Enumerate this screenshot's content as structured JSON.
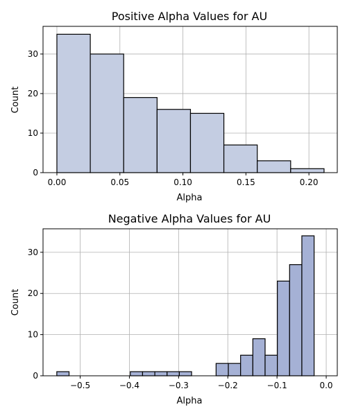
{
  "chart_data": [
    {
      "type": "bar",
      "title": "Positive Alpha Values for AU",
      "xlabel": "Alpha",
      "ylabel": "Count",
      "xlim": [
        -0.011,
        0.2225
      ],
      "ylim": [
        0,
        37
      ],
      "xticks": [
        0.0,
        0.05,
        0.1,
        0.15,
        0.2
      ],
      "xtick_labels": [
        "0.00",
        "0.05",
        "0.10",
        "0.15",
        "0.20"
      ],
      "yticks": [
        0,
        10,
        20,
        30
      ],
      "ytick_labels": [
        "0",
        "10",
        "20",
        "30"
      ],
      "grid": true,
      "bar_color": "#c4cde2",
      "edge_color": "#000000",
      "bins": [
        {
          "x0": 0.0,
          "x1": 0.0265,
          "count": 35
        },
        {
          "x0": 0.0265,
          "x1": 0.053,
          "count": 30
        },
        {
          "x0": 0.053,
          "x1": 0.0795,
          "count": 19
        },
        {
          "x0": 0.0795,
          "x1": 0.106,
          "count": 16
        },
        {
          "x0": 0.106,
          "x1": 0.1325,
          "count": 15
        },
        {
          "x0": 0.1325,
          "x1": 0.159,
          "count": 7
        },
        {
          "x0": 0.159,
          "x1": 0.1855,
          "count": 3
        },
        {
          "x0": 0.1855,
          "x1": 0.212,
          "count": 1
        }
      ]
    },
    {
      "type": "bar",
      "title": "Negative Alpha Values for AU",
      "xlabel": "Alpha",
      "ylabel": "Count",
      "xlim": [
        -0.5755,
        0.0225
      ],
      "ylim": [
        0,
        35.7
      ],
      "xticks": [
        -0.5,
        -0.4,
        -0.3,
        -0.2,
        -0.1,
        0.0
      ],
      "xtick_labels": [
        "−0.5",
        "−0.4",
        "−0.3",
        "−0.2",
        "−0.1",
        "0.0"
      ],
      "yticks": [
        0,
        10,
        20,
        30
      ],
      "ytick_labels": [
        "0",
        "10",
        "20",
        "30"
      ],
      "grid": true,
      "bar_color": "#a5b1d5",
      "edge_color": "#000000",
      "bins": [
        {
          "x0": -0.5475,
          "x1": -0.5226,
          "count": 1
        },
        {
          "x0": -0.5226,
          "x1": -0.4977,
          "count": 0
        },
        {
          "x0": -0.4977,
          "x1": -0.4728,
          "count": 0
        },
        {
          "x0": -0.4728,
          "x1": -0.4479,
          "count": 0
        },
        {
          "x0": -0.4479,
          "x1": -0.423,
          "count": 0
        },
        {
          "x0": -0.423,
          "x1": -0.3981,
          "count": 0
        },
        {
          "x0": -0.3981,
          "x1": -0.3732,
          "count": 1
        },
        {
          "x0": -0.3732,
          "x1": -0.3483,
          "count": 1
        },
        {
          "x0": -0.3483,
          "x1": -0.3234,
          "count": 1
        },
        {
          "x0": -0.3234,
          "x1": -0.2985,
          "count": 1
        },
        {
          "x0": -0.2985,
          "x1": -0.2736,
          "count": 1
        },
        {
          "x0": -0.2736,
          "x1": -0.2487,
          "count": 0
        },
        {
          "x0": -0.2487,
          "x1": -0.2238,
          "count": 0
        },
        {
          "x0": -0.2238,
          "x1": -0.1989,
          "count": 3
        },
        {
          "x0": -0.1989,
          "x1": -0.174,
          "count": 3
        },
        {
          "x0": -0.174,
          "x1": -0.1491,
          "count": 5
        },
        {
          "x0": -0.1491,
          "x1": -0.1242,
          "count": 9
        },
        {
          "x0": -0.1242,
          "x1": -0.0993,
          "count": 5
        },
        {
          "x0": -0.0993,
          "x1": -0.0744,
          "count": 23
        },
        {
          "x0": -0.0744,
          "x1": -0.0495,
          "count": 27
        },
        {
          "x0": -0.0495,
          "x1": -0.0246,
          "count": 34
        }
      ]
    }
  ]
}
